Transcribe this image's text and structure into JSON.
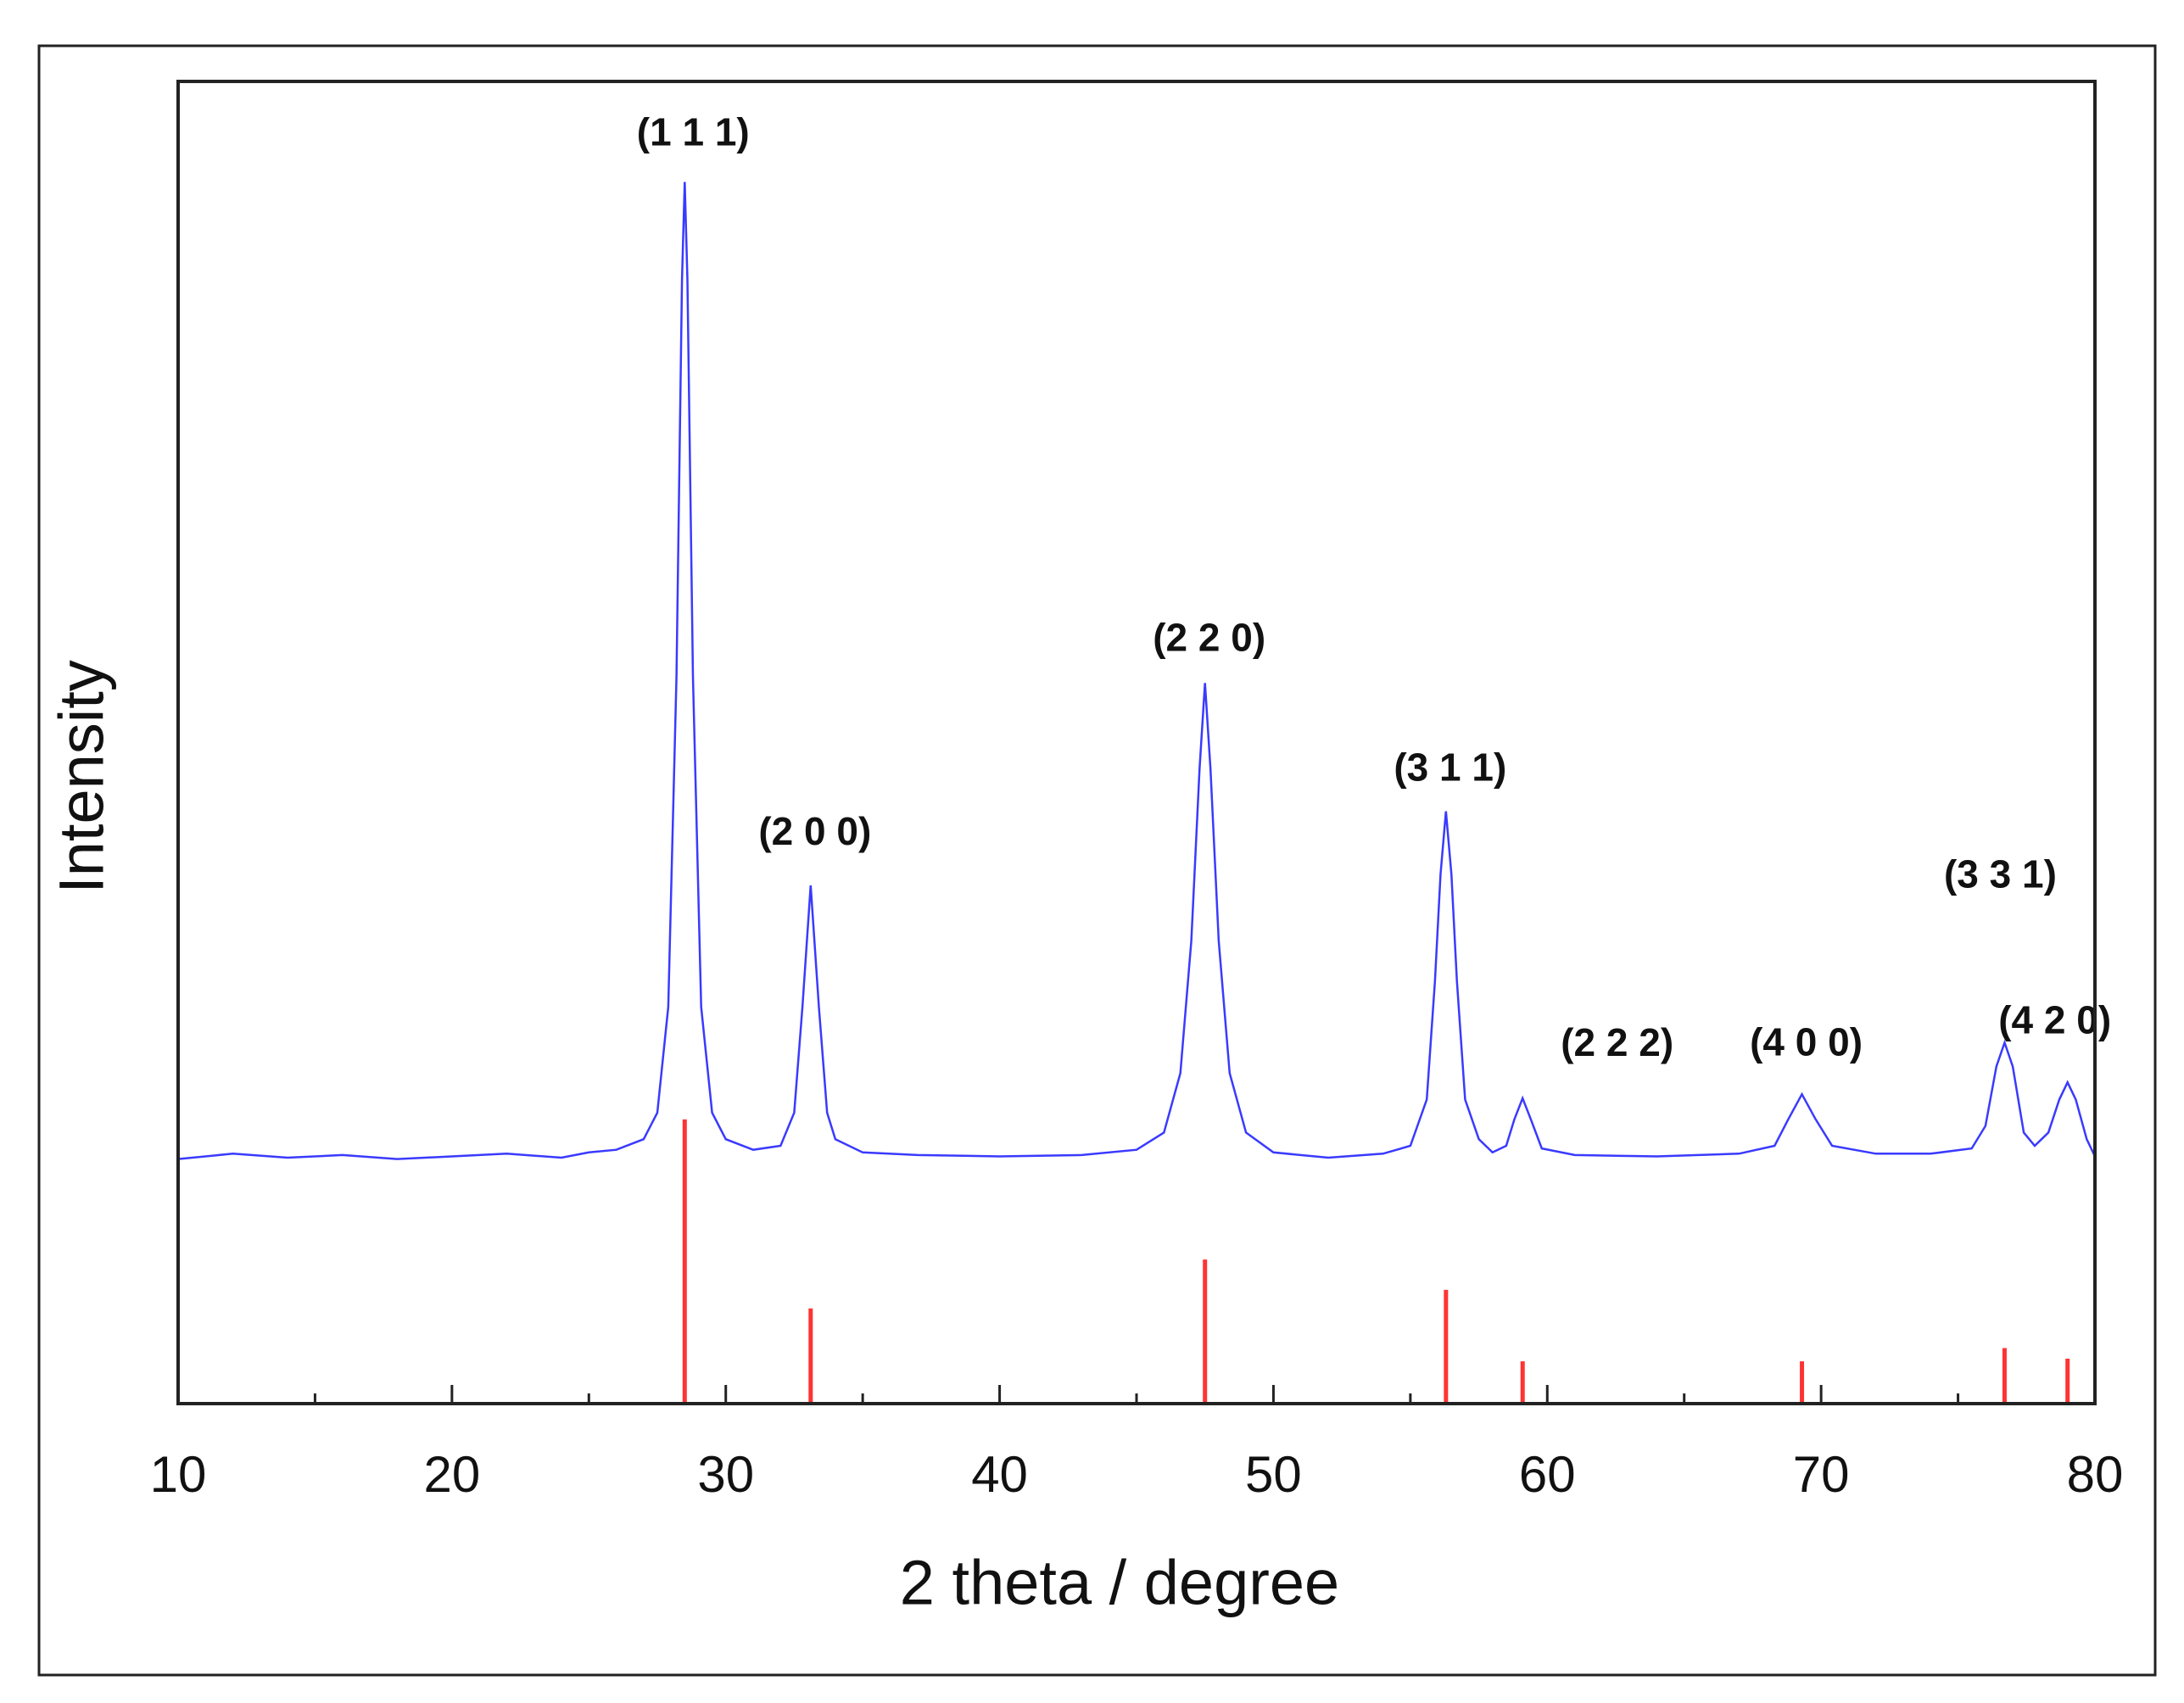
{
  "chart_data": {
    "type": "xrd",
    "xlabel": "2 theta / degree",
    "ylabel": "Intensity",
    "xlim": [
      10,
      80
    ],
    "xticks": [
      10,
      20,
      30,
      40,
      50,
      60,
      70,
      80
    ],
    "xminorticks": [
      15,
      25,
      35,
      45,
      55,
      65,
      75
    ],
    "ylim": [
      0,
      100
    ],
    "series": [
      {
        "kind": "line",
        "color": "#3a3aff",
        "x": [
          10,
          12,
          14,
          16,
          18,
          20,
          22,
          24,
          25,
          26,
          27,
          27.5,
          27.9,
          28.2,
          28.4,
          28.5,
          28.6,
          28.8,
          29.1,
          29.5,
          30,
          31,
          32,
          32.5,
          32.8,
          33.1,
          33.4,
          33.7,
          34,
          35,
          37,
          40,
          43,
          45,
          46,
          46.6,
          47,
          47.3,
          47.5,
          47.7,
          48,
          48.4,
          49,
          50,
          52,
          54,
          55,
          55.6,
          55.9,
          56.1,
          56.3,
          56.5,
          56.7,
          57,
          57.5,
          58,
          58.5,
          58.8,
          59.1,
          59.4,
          59.8,
          61,
          64,
          67,
          68.3,
          68.8,
          69.3,
          69.8,
          70.4,
          72,
          74,
          75.5,
          76,
          76.4,
          76.7,
          77,
          77.4,
          77.8,
          78.3,
          78.7,
          79,
          79.3,
          79.7,
          80
        ],
        "values": [
          18.5,
          18.9,
          18.6,
          18.8,
          18.5,
          18.7,
          18.9,
          18.6,
          19.0,
          19.2,
          20.0,
          22,
          30,
          55,
          85,
          92.4,
          85,
          55,
          30,
          22,
          20,
          19.2,
          19.5,
          22,
          30,
          39.2,
          30,
          22,
          20,
          19,
          18.8,
          18.7,
          18.8,
          19.2,
          20.5,
          25,
          35,
          48,
          54.5,
          48,
          35,
          25,
          20.5,
          19,
          18.6,
          18.9,
          19.5,
          23,
          32,
          40,
          44.8,
          40,
          32,
          23,
          20,
          19,
          19.5,
          21.5,
          23.1,
          21.5,
          19.3,
          18.8,
          18.7,
          18.9,
          19.5,
          21.5,
          23.4,
          21.5,
          19.5,
          18.9,
          18.9,
          19.3,
          21,
          25.5,
          27.3,
          25.5,
          20.5,
          19.5,
          20.5,
          23,
          24.3,
          23,
          20,
          18.7
        ]
      },
      {
        "kind": "stick",
        "color": "#ff3333",
        "x": [
          28.5,
          33.1,
          47.5,
          56.3,
          59.1,
          69.3,
          76.7,
          79.0
        ],
        "values": [
          21.5,
          7.2,
          10.9,
          8.6,
          3.2,
          3.2,
          4.2,
          3.4
        ]
      }
    ],
    "annotations": [
      "(1 1 1)",
      "(2 0 0)",
      "(2 2 0)",
      "(3 1 1)",
      "(2 2 2)",
      "(4 0 0)",
      "(3 3 1)",
      "(4 2 0)"
    ]
  }
}
